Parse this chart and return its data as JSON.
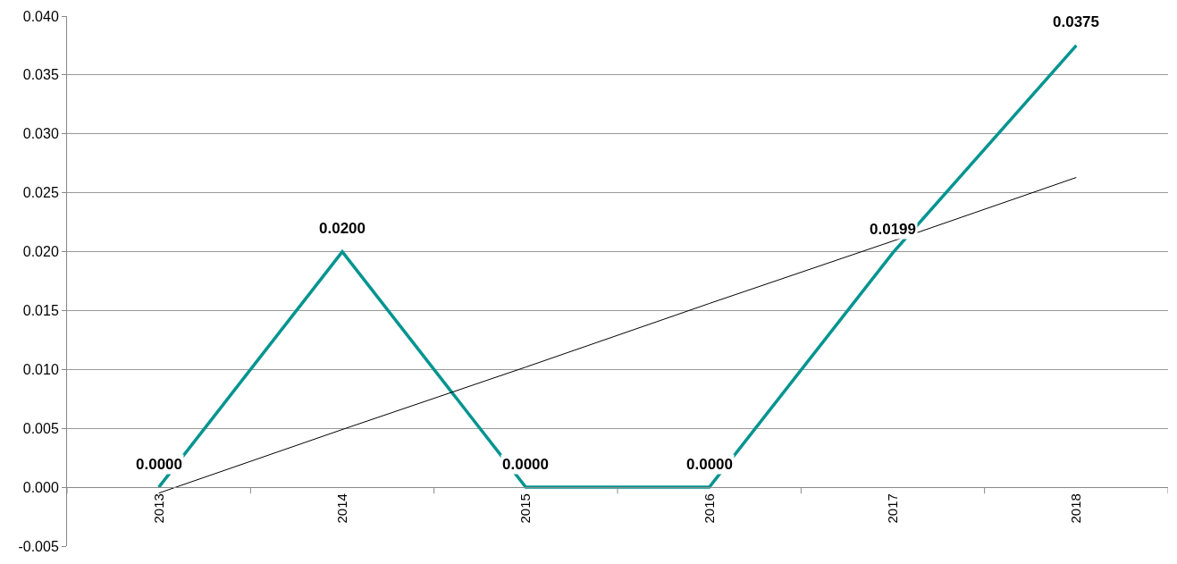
{
  "chart_data": {
    "type": "line",
    "categories": [
      "2013",
      "2014",
      "2015",
      "2016",
      "2017",
      "2018"
    ],
    "series": [
      {
        "color": "#009490",
        "values": [
          0.0,
          0.02,
          0.0,
          0.0,
          0.0199,
          0.0375
        ],
        "value_labels": [
          "0.0000",
          "0.0200",
          "0.0000",
          "0.0000",
          "0.0199",
          "0.0375"
        ]
      },
      {
        "color": "#000000",
        "values": [
          -0.0005,
          0.0049,
          0.0102,
          0.0156,
          0.0209,
          0.0263
        ]
      }
    ],
    "ylim": [
      -0.005,
      0.04
    ],
    "yticks": [
      {
        "value": -0.005,
        "label": "-0.005"
      },
      {
        "value": 0,
        "label": "0.000"
      },
      {
        "value": 0.005,
        "label": "0.005"
      },
      {
        "value": 0.01,
        "label": "0.010"
      },
      {
        "value": 0.015,
        "label": "0.015"
      },
      {
        "value": 0.02,
        "label": "0.020"
      },
      {
        "value": 0.025,
        "label": "0.025"
      },
      {
        "value": 0.03,
        "label": "0.030"
      },
      {
        "value": 0.035,
        "label": "0.035"
      },
      {
        "value": 0.04,
        "label": "0.040"
      }
    ],
    "grid": "y",
    "marker": "none",
    "line_style": "solid"
  }
}
